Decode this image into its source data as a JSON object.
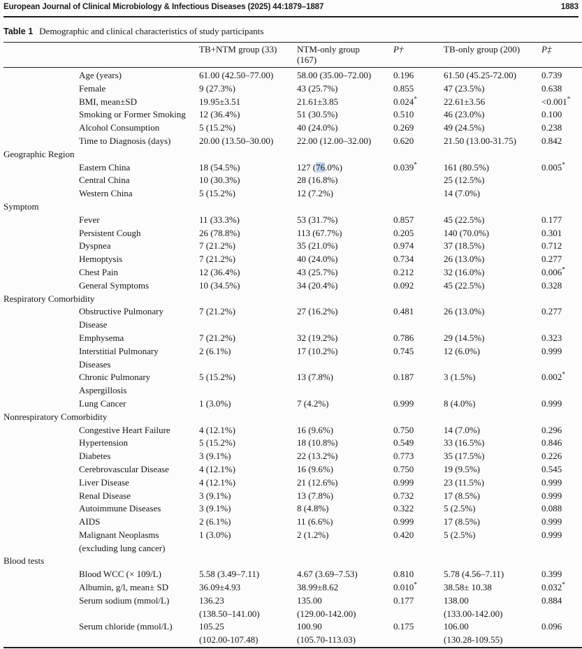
{
  "page_header": {
    "journal": "European Journal of Clinical Microbiology & Infectious Diseases (2025) 44:1879–1887",
    "page_number": "1883"
  },
  "table": {
    "caption_label": "Table 1",
    "caption_text": "Demographic and clinical characteristics of study participants",
    "columns": [
      "",
      "TB+NTM group (33)",
      "NTM-only group\n(167)",
      "P†",
      "TB-only group (200)",
      "P‡"
    ],
    "highlight": {
      "row_label": "Eastern China",
      "cell_index": 1,
      "text": "76",
      "color": "#c5d6ef"
    },
    "rows": [
      {
        "type": "item",
        "label": "Age (years)",
        "cells": [
          "61.00 (42.50–77.00)",
          "58.00 (35.00–72.00)",
          "0.196",
          "61.50 (45.25-72.00)",
          "0.739"
        ]
      },
      {
        "type": "item",
        "label": "Female",
        "cells": [
          "9 (27.3%)",
          "43 (25.7%)",
          "0.855",
          "47 (23.5%)",
          "0.638"
        ]
      },
      {
        "type": "item",
        "label": "BMI, mean±SD",
        "cells": [
          "19.95±3.51",
          "21.61±3.85",
          "0.024*",
          "22.61±3.56",
          "<0.001*"
        ]
      },
      {
        "type": "item",
        "label": "Smoking or Former Smoking",
        "cells": [
          "12 (36.4%)",
          "51 (30.5%)",
          "0.510",
          "46 (23.0%)",
          "0.100"
        ]
      },
      {
        "type": "item",
        "label": "Alcohol Consumption",
        "cells": [
          "5 (15.2%)",
          "40 (24.0%)",
          "0.269",
          "49 (24.5%)",
          "0.238"
        ]
      },
      {
        "type": "item",
        "label": "Time to Diagnosis (days)",
        "cells": [
          "20.00 (13.50–30.00)",
          "22.00 (12.00–32.00)",
          "0.620",
          "21.50 (13.00-31.75)",
          "0.842"
        ]
      },
      {
        "type": "section",
        "label": "Geographic Region"
      },
      {
        "type": "item",
        "label": "Eastern China",
        "cells": [
          "18 (54.5%)",
          "127 (76.0%)",
          "0.039*",
          "161 (80.5%)",
          "0.005*"
        ]
      },
      {
        "type": "item",
        "label": "Central China",
        "cells": [
          "10 (30.3%)",
          "28 (16.8%)",
          "",
          "25 (12.5%)",
          ""
        ]
      },
      {
        "type": "item",
        "label": "Western China",
        "cells": [
          "5 (15.2%)",
          "12 (7.2%)",
          "",
          "14 (7.0%)",
          ""
        ]
      },
      {
        "type": "section",
        "label": "Symptom"
      },
      {
        "type": "item",
        "label": "Fever",
        "cells": [
          "11 (33.3%)",
          "53 (31.7%)",
          "0.857",
          "45 (22.5%)",
          "0.177"
        ]
      },
      {
        "type": "item",
        "label": "Persistent Cough",
        "cells": [
          "26 (78.8%)",
          "113 (67.7%)",
          "0.205",
          "140 (70.0%)",
          "0.301"
        ]
      },
      {
        "type": "item",
        "label": "Dyspnea",
        "cells": [
          "7 (21.2%)",
          "35 (21.0%)",
          "0.974",
          "37 (18.5%)",
          "0.712"
        ]
      },
      {
        "type": "item",
        "label": "Hemoptysis",
        "cells": [
          "7 (21.2%)",
          "40 (24.0%)",
          "0.734",
          "26 (13.0%)",
          "0.277"
        ]
      },
      {
        "type": "item",
        "label": "Chest Pain",
        "cells": [
          "12 (36.4%)",
          "43 (25.7%)",
          "0.212",
          "32 (16.0%)",
          "0.006*"
        ]
      },
      {
        "type": "item",
        "label": "General Symptoms",
        "cells": [
          "10 (34.5%)",
          "34 (20.4%)",
          "0.092",
          "45 (22.5%)",
          "0.328"
        ]
      },
      {
        "type": "section",
        "label": "Respiratory Comorbidity"
      },
      {
        "type": "item",
        "label": "Obstructive Pulmonary\nDisease",
        "cells": [
          "7 (21.2%)",
          "27 (16.2%)",
          "0.481",
          "26 (13.0%)",
          "0.277"
        ]
      },
      {
        "type": "item",
        "label": "Emphysema",
        "cells": [
          "7 (21.2%)",
          "32 (19.2%)",
          "0.786",
          "29 (14.5%)",
          "0.323"
        ]
      },
      {
        "type": "item",
        "label": "Interstitial Pulmonary\nDiseases",
        "cells": [
          "2 (6.1%)",
          "17 (10.2%)",
          "0.745",
          "12 (6.0%)",
          "0.999"
        ]
      },
      {
        "type": "item",
        "label": "Chronic Pulmonary\nAspergillosis",
        "cells": [
          "5 (15.2%)",
          "13 (7.8%)",
          "0.187",
          "3 (1.5%)",
          "0.002*"
        ]
      },
      {
        "type": "item",
        "label": "Lung Cancer",
        "cells": [
          "1 (3.0%)",
          "7 (4.2%)",
          "0.999",
          "8 (4.0%)",
          "0.999"
        ]
      },
      {
        "type": "section",
        "label": "Nonrespiratory Comorbidity"
      },
      {
        "type": "item",
        "label": "Congestive Heart Failure",
        "cells": [
          "4 (12.1%)",
          "16 (9.6%)",
          "0.750",
          "14 (7.0%)",
          "0.296"
        ]
      },
      {
        "type": "item",
        "label": "Hypertension",
        "cells": [
          "5 (15.2%)",
          "18 (10.8%)",
          "0.549",
          "33 (16.5%)",
          "0.846"
        ]
      },
      {
        "type": "item",
        "label": "Diabetes",
        "cells": [
          "3 (9.1%)",
          "22 (13.2%)",
          "0.773",
          "35 (17.5%)",
          "0.226"
        ]
      },
      {
        "type": "item",
        "label": "Cerebrovascular Disease",
        "cells": [
          "4 (12.1%)",
          "16 (9.6%)",
          "0.750",
          "19 (9.5%)",
          "0.545"
        ]
      },
      {
        "type": "item",
        "label": "Liver Disease",
        "cells": [
          "4 (12.1%)",
          "21 (12.6%)",
          "0.999",
          "23 (11.5%)",
          "0.999"
        ]
      },
      {
        "type": "item",
        "label": "Renal Disease",
        "cells": [
          "3 (9.1%)",
          "13 (7.8%)",
          "0.732",
          "17 (8.5%)",
          "0.999"
        ]
      },
      {
        "type": "item",
        "label": "Autoimmune Diseases",
        "cells": [
          "3 (9.1%)",
          "8 (4.8%)",
          "0.322",
          "5 (2.5%)",
          "0.088"
        ]
      },
      {
        "type": "item",
        "label": "AIDS",
        "cells": [
          "2 (6.1%)",
          "11 (6.6%)",
          "0.999",
          "17 (8.5%)",
          "0.999"
        ]
      },
      {
        "type": "item",
        "label": "Malignant Neoplasms\n(excluding lung cancer)",
        "cells": [
          "1 (3.0%)",
          "2 (1.2%)",
          "0.420",
          "5 (2.5%)",
          "0.999"
        ]
      },
      {
        "type": "section",
        "label": "Blood tests"
      },
      {
        "type": "item",
        "label": "Blood WCC (× 109/L)",
        "cells": [
          " 5.58 (3.49–7.11)",
          " 4.67 (3.69–7.53)",
          "0.810",
          "5.78 (4.56–7.11)",
          "0.399"
        ]
      },
      {
        "type": "item",
        "label": "Albumin, g/l, mean± SD",
        "cells": [
          "36.09±4.93",
          "38.99±8.62",
          "0.010*",
          "38.58± 10.38",
          "0.032*"
        ]
      },
      {
        "type": "item",
        "label": "Serum sodium (mmol/L)",
        "cells": [
          "136.23\n(138.50–141.00)",
          "135.00\n(129.00-142.00)",
          "0.177",
          "138.00\n(133.00-142.00)",
          "0.884"
        ]
      },
      {
        "type": "item",
        "label": "Serum chloride (mmol/L)",
        "cells": [
          "105.25\n(102.00-107.48)",
          "100.90\n(105.70-113.03)",
          "0.175",
          "106.00\n(130.28-109.55)",
          "0.096"
        ]
      }
    ]
  }
}
